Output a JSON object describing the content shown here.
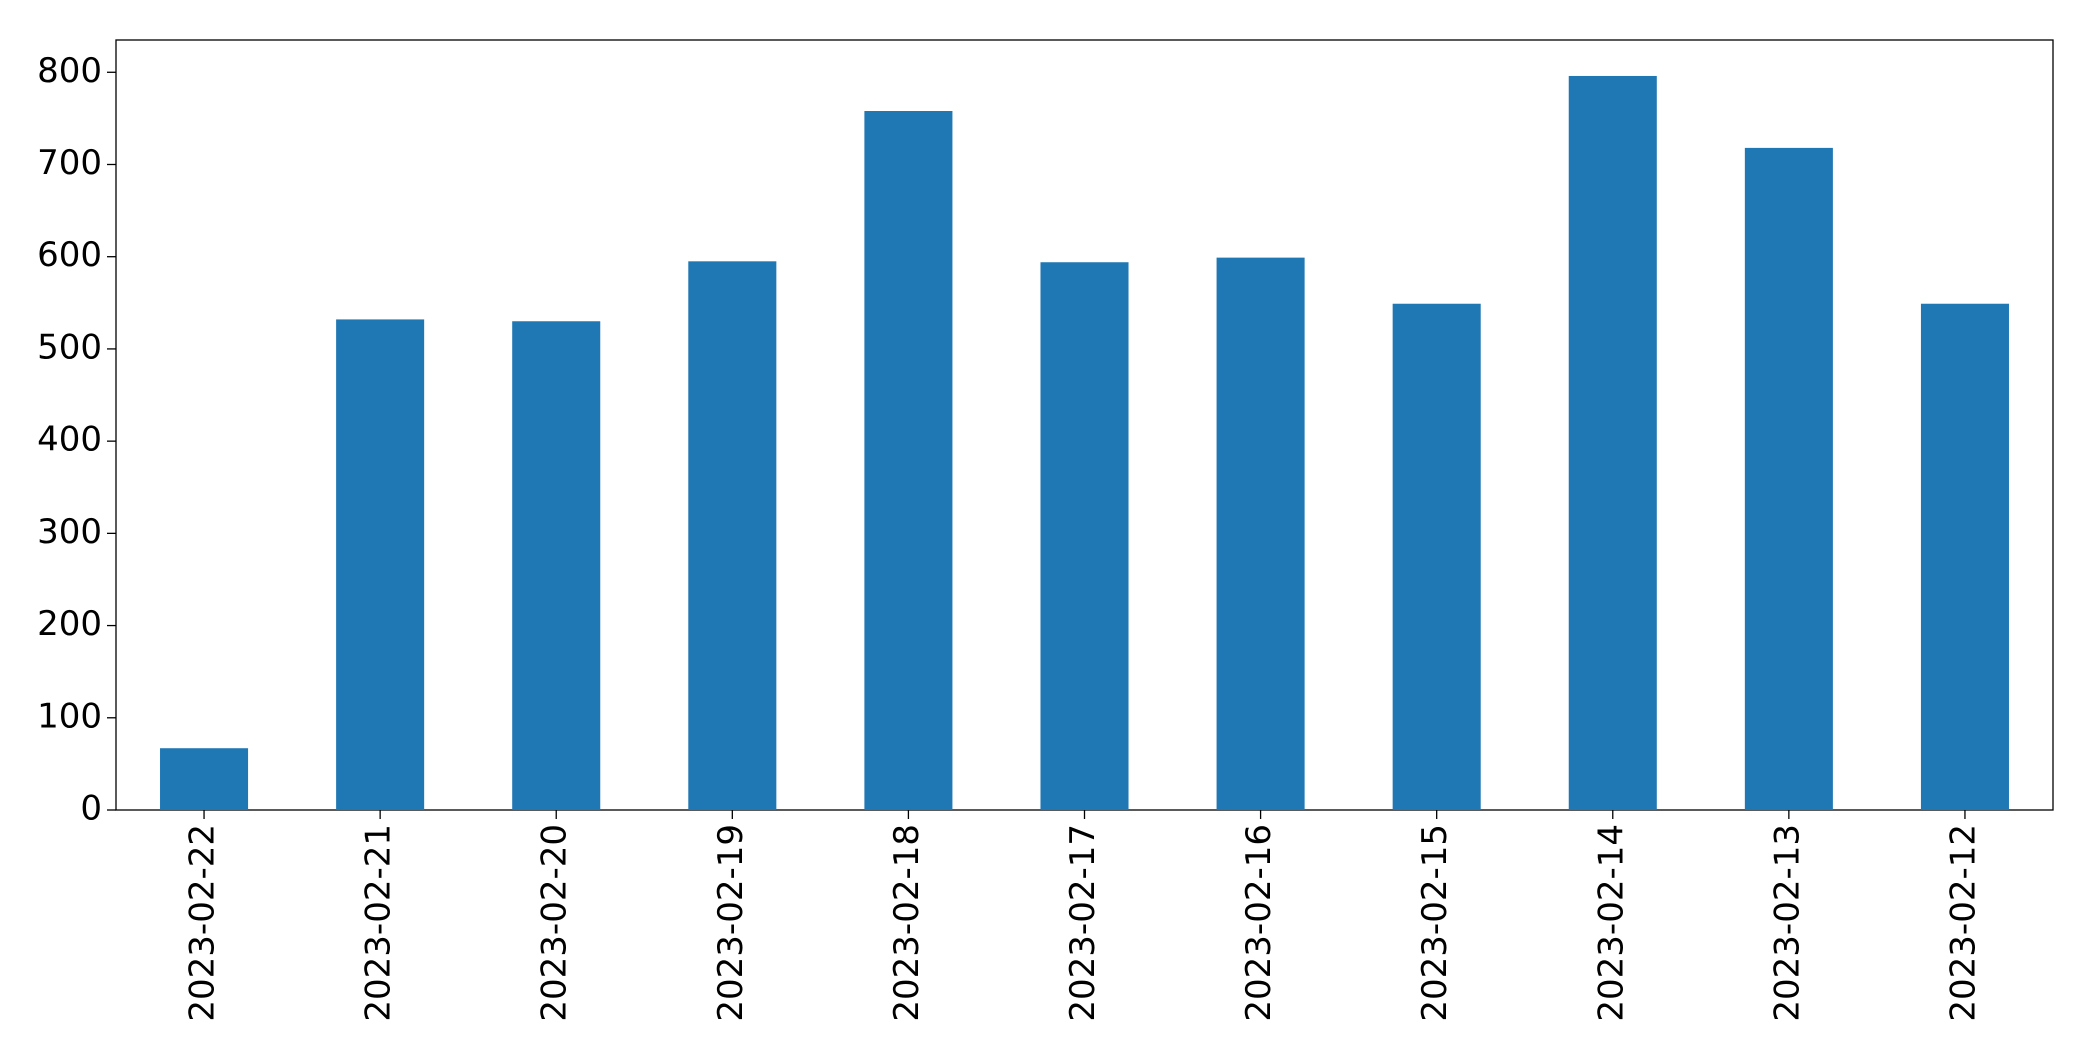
{
  "chart_data": {
    "type": "bar",
    "categories": [
      "2023-02-22",
      "2023-02-21",
      "2023-02-20",
      "2023-02-19",
      "2023-02-18",
      "2023-02-17",
      "2023-02-16",
      "2023-02-15",
      "2023-02-14",
      "2023-02-13",
      "2023-02-12"
    ],
    "values": [
      67,
      532,
      530,
      595,
      758,
      594,
      599,
      549,
      796,
      718,
      549
    ],
    "color": "#1f77b4",
    "ylim": [
      0,
      835
    ],
    "yticks": [
      0,
      100,
      200,
      300,
      400,
      500,
      600,
      700,
      800
    ],
    "grid": false
  }
}
